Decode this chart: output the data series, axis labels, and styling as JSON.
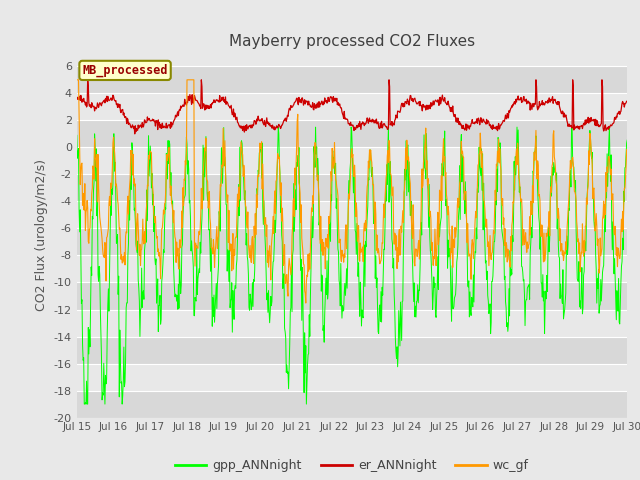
{
  "title": "Mayberry processed CO2 Fluxes",
  "ylabel": "CO2 Flux (urology/m2/s)",
  "ylim": [
    -20,
    7
  ],
  "yticks": [
    -20,
    -18,
    -16,
    -14,
    -12,
    -10,
    -8,
    -6,
    -4,
    -2,
    0,
    2,
    4,
    6
  ],
  "x_tick_labels": [
    "Jul 15",
    "Jul 16",
    "Jul 17",
    "Jul 18",
    "Jul 19",
    "Jul 20",
    "Jul 21",
    "Jul 22",
    "Jul 23",
    "Jul 24",
    "Jul 25",
    "Jul 26",
    "Jul 27",
    "Jul 28",
    "Jul 29",
    "Jul 30"
  ],
  "legend_label": "MB_processed",
  "line_labels": [
    "gpp_ANNnight",
    "er_ANNnight",
    "wc_gf"
  ],
  "line_colors": [
    "#00ff00",
    "#cc0000",
    "#ff9900"
  ],
  "bg_color": "#e8e8e8",
  "plot_bg_light": "#e8e8e8",
  "plot_bg_dark": "#d8d8d8",
  "title_color": "#404040",
  "legend_box_facecolor": "#ffffcc",
  "legend_box_edgecolor": "#888800",
  "legend_text_color": "#990000",
  "n_points": 960,
  "days": 15,
  "seed": 42,
  "figsize": [
    6.4,
    4.8
  ],
  "dpi": 100
}
